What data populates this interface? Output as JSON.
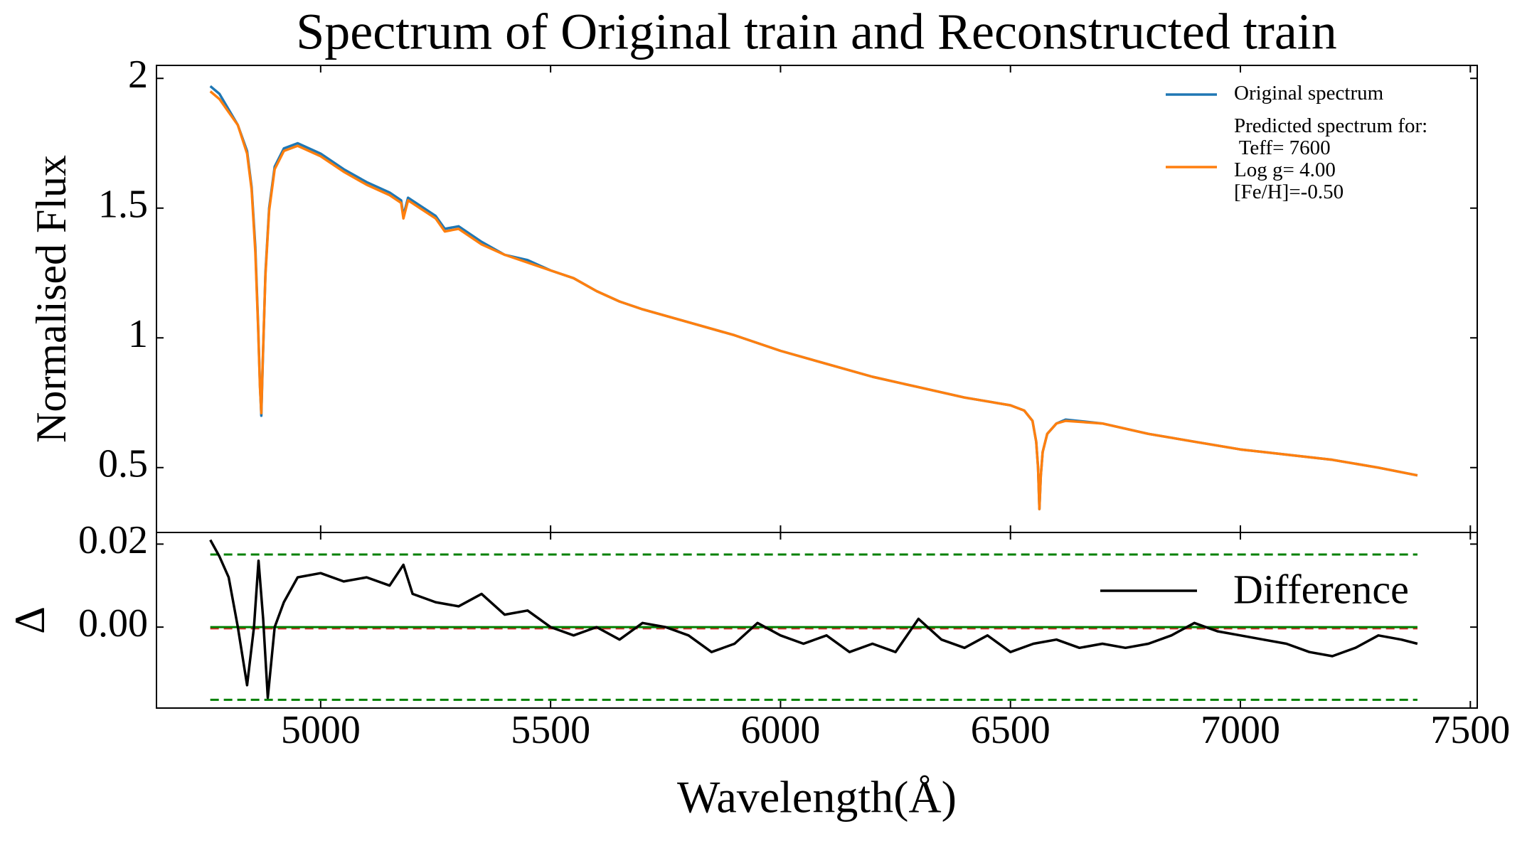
{
  "chart_data": [
    {
      "type": "line",
      "title": "Spectrum of Original train and Reconstructed train",
      "ylabel": "Normalised Flux",
      "xlim": [
        4643,
        7515
      ],
      "ylim": [
        0.25,
        2.05
      ],
      "yticks": [
        0.5,
        1.0,
        1.5,
        2.0
      ],
      "legend": "upper right",
      "x": [
        4760,
        4780,
        4800,
        4820,
        4840,
        4850,
        4858,
        4864,
        4868,
        4871,
        4874,
        4880,
        4888,
        4900,
        4920,
        4950,
        5000,
        5050,
        5100,
        5150,
        5175,
        5180,
        5190,
        5250,
        5270,
        5300,
        5350,
        5400,
        5450,
        5500,
        5550,
        5600,
        5650,
        5700,
        5800,
        5900,
        6000,
        6100,
        6200,
        6300,
        6400,
        6500,
        6530,
        6548,
        6556,
        6560,
        6563,
        6566,
        6570,
        6580,
        6600,
        6620,
        6700,
        6800,
        6900,
        7000,
        7100,
        7200,
        7300,
        7385
      ],
      "series": [
        {
          "name": "Original spectrum",
          "color": "#1f77b4",
          "values": [
            1.97,
            1.94,
            1.88,
            1.82,
            1.72,
            1.58,
            1.35,
            1.05,
            0.82,
            0.7,
            0.9,
            1.25,
            1.5,
            1.66,
            1.73,
            1.75,
            1.71,
            1.65,
            1.6,
            1.56,
            1.53,
            1.47,
            1.54,
            1.47,
            1.42,
            1.43,
            1.37,
            1.32,
            1.3,
            1.26,
            1.23,
            1.18,
            1.14,
            1.11,
            1.06,
            1.01,
            0.95,
            0.9,
            0.85,
            0.81,
            0.77,
            0.74,
            0.72,
            0.68,
            0.6,
            0.5,
            0.34,
            0.47,
            0.56,
            0.63,
            0.67,
            0.685,
            0.67,
            0.63,
            0.6,
            0.57,
            0.55,
            0.53,
            0.5,
            0.47
          ]
        },
        {
          "name": "Predicted spectrum for:\n Teff= 7600\nLog g= 4.00\n[Fe/H]=-0.50",
          "color": "#ff7f0e",
          "values": [
            1.95,
            1.92,
            1.87,
            1.82,
            1.71,
            1.57,
            1.33,
            1.04,
            0.81,
            0.71,
            0.91,
            1.24,
            1.49,
            1.65,
            1.72,
            1.74,
            1.7,
            1.64,
            1.59,
            1.55,
            1.52,
            1.46,
            1.53,
            1.46,
            1.41,
            1.42,
            1.36,
            1.32,
            1.29,
            1.26,
            1.23,
            1.18,
            1.14,
            1.11,
            1.06,
            1.01,
            0.95,
            0.9,
            0.85,
            0.81,
            0.77,
            0.74,
            0.72,
            0.68,
            0.6,
            0.5,
            0.34,
            0.47,
            0.56,
            0.63,
            0.67,
            0.68,
            0.67,
            0.63,
            0.6,
            0.57,
            0.55,
            0.53,
            0.5,
            0.47
          ]
        }
      ]
    },
    {
      "type": "line",
      "ylabel": "Δ",
      "xlabel": "Wavelength(Å)",
      "xlim": [
        4643,
        7515
      ],
      "xticks": [
        5000,
        5500,
        6000,
        6500,
        7000,
        7500
      ],
      "ylim": [
        -0.0195,
        0.0228
      ],
      "yticks": [
        {
          "value": 0,
          "label": "0.00"
        },
        {
          "value": 0.02,
          "label": "0.02"
        }
      ],
      "legend": "upper right",
      "hlines": [
        {
          "value": 0.0175,
          "color": "#008000",
          "style": "dashed"
        },
        {
          "value": -0.0175,
          "color": "#008000",
          "style": "dashed"
        },
        {
          "value": -0.0003,
          "color": "#d62728",
          "style": "dashed"
        },
        {
          "value": 0,
          "color": "#008000",
          "style": "solid"
        }
      ],
      "x": [
        4760,
        4780,
        4800,
        4820,
        4840,
        4855,
        4865,
        4875,
        4885,
        4900,
        4920,
        4950,
        5000,
        5050,
        5100,
        5150,
        5180,
        5200,
        5250,
        5300,
        5350,
        5400,
        5450,
        5500,
        5550,
        5600,
        5650,
        5700,
        5750,
        5800,
        5850,
        5900,
        5950,
        6000,
        6050,
        6100,
        6150,
        6200,
        6250,
        6300,
        6350,
        6400,
        6450,
        6500,
        6550,
        6600,
        6650,
        6700,
        6750,
        6800,
        6850,
        6900,
        6950,
        7000,
        7050,
        7100,
        7150,
        7200,
        7250,
        7300,
        7350,
        7385
      ],
      "series": [
        {
          "name": "Difference",
          "color": "#000000",
          "values": [
            0.021,
            0.017,
            0.012,
            0.0,
            -0.014,
            0.0,
            0.016,
            0.002,
            -0.017,
            0.0,
            0.006,
            0.012,
            0.013,
            0.011,
            0.012,
            0.01,
            0.015,
            0.008,
            0.006,
            0.005,
            0.008,
            0.003,
            0.004,
            0.0,
            -0.002,
            0.0,
            -0.003,
            0.001,
            0.0,
            -0.002,
            -0.006,
            -0.004,
            0.001,
            -0.002,
            -0.004,
            -0.002,
            -0.006,
            -0.004,
            -0.006,
            0.002,
            -0.003,
            -0.005,
            -0.002,
            -0.006,
            -0.004,
            -0.003,
            -0.005,
            -0.004,
            -0.005,
            -0.004,
            -0.002,
            0.001,
            -0.001,
            -0.002,
            -0.003,
            -0.004,
            -0.006,
            -0.007,
            -0.005,
            -0.002,
            -0.003,
            -0.004
          ]
        }
      ]
    }
  ]
}
